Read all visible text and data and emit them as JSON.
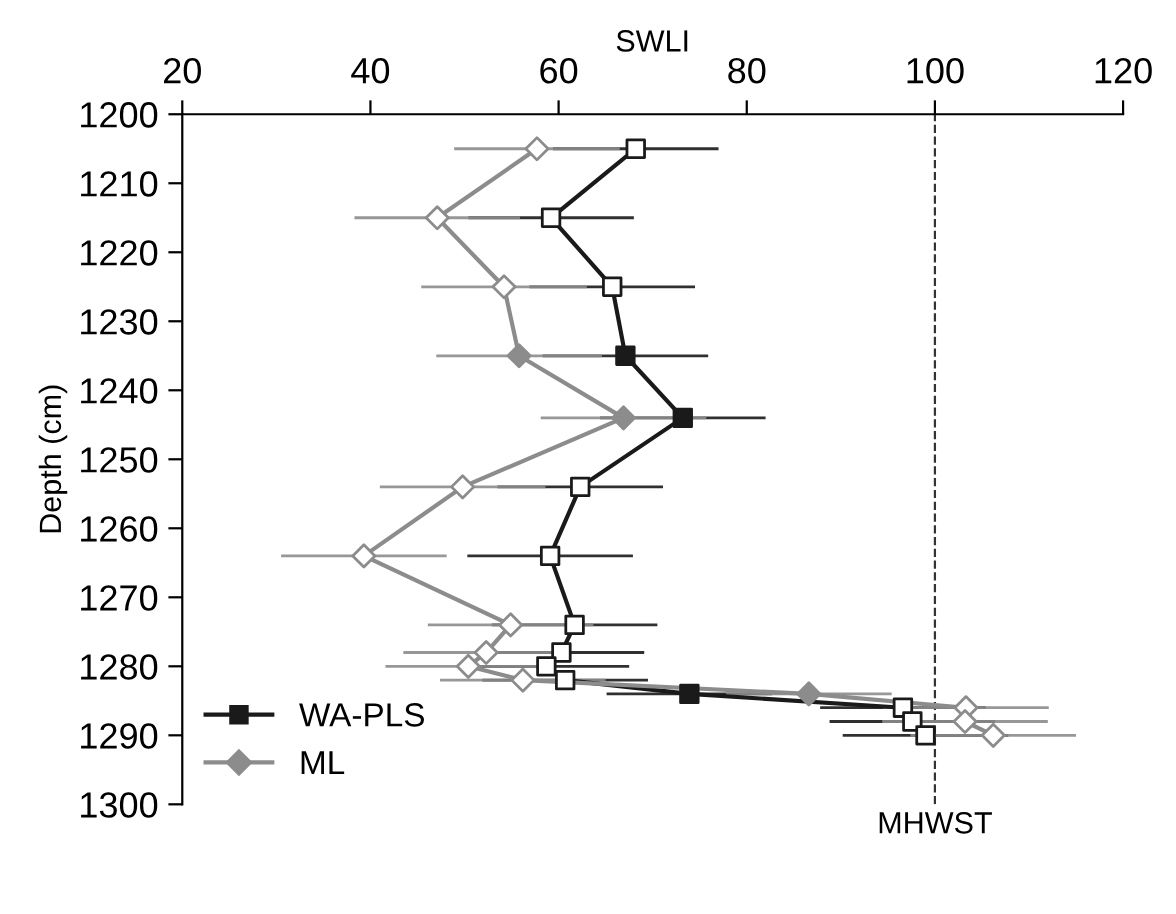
{
  "chart_data": {
    "type": "line",
    "xlabel": "SWLI",
    "ylabel": "Depth (cm)",
    "xlim": [
      20,
      120
    ],
    "xticks": [
      20,
      40,
      60,
      80,
      100,
      120
    ],
    "ylim": [
      1300,
      1200
    ],
    "yticks": [
      1200,
      1210,
      1220,
      1230,
      1240,
      1250,
      1260,
      1270,
      1280,
      1290,
      1300
    ],
    "grid": false,
    "legend": "bottom left",
    "line_style": "solid",
    "ref_lines": [
      {
        "axis": "x",
        "value": 100,
        "label": "MHWST",
        "color": "#333333",
        "line_style": "dashed"
      }
    ],
    "series": [
      {
        "name": "WA-PLS",
        "color": "#1a1a1a",
        "marker": "square",
        "x": [
          68.2,
          59.2,
          65.7,
          67.1,
          73.2,
          62.3,
          59.1,
          61.7,
          60.3,
          58.7,
          60.7,
          73.9,
          96.6,
          97.6,
          99.0
        ],
        "values": [
          1205,
          1215,
          1225,
          1235,
          1244,
          1254,
          1264,
          1274,
          1278,
          1280,
          1282,
          1284,
          1286,
          1288,
          1290
        ],
        "xerrors": [
          8.8,
          8.8,
          8.8,
          8.8,
          8.8,
          8.8,
          8.8,
          8.8,
          8.8,
          8.8,
          8.8,
          8.8,
          8.8,
          8.8,
          8.8
        ],
        "colors": [
          "#ffffff",
          "#ffffff",
          "#ffffff",
          "#1a1a1a",
          "#1a1a1a",
          "#ffffff",
          "#ffffff",
          "#ffffff",
          "#ffffff",
          "#ffffff",
          "#ffffff",
          "#1a1a1a",
          "#ffffff",
          "#ffffff",
          "#ffffff"
        ]
      },
      {
        "name": "ML",
        "color": "#8c8c8c",
        "marker": "diamond",
        "x": [
          57.7,
          47.1,
          54.2,
          55.8,
          66.9,
          49.8,
          39.3,
          54.9,
          52.3,
          50.4,
          56.2,
          86.6,
          103.3,
          103.2,
          106.2
        ],
        "values": [
          1205,
          1215,
          1225,
          1235,
          1244,
          1254,
          1264,
          1274,
          1278,
          1280,
          1282,
          1284,
          1286,
          1288,
          1290
        ],
        "xerrors": [
          8.8,
          8.8,
          8.8,
          8.8,
          8.8,
          8.8,
          8.8,
          8.8,
          8.8,
          8.8,
          8.8,
          8.8,
          8.8,
          8.8,
          8.8
        ],
        "colors": [
          "#ffffff",
          "#ffffff",
          "#ffffff",
          "#8c8c8c",
          "#8c8c8c",
          "#ffffff",
          "#ffffff",
          "#ffffff",
          "#ffffff",
          "#ffffff",
          "#ffffff",
          "#8c8c8c",
          "#ffffff",
          "#ffffff",
          "#ffffff"
        ]
      }
    ]
  }
}
